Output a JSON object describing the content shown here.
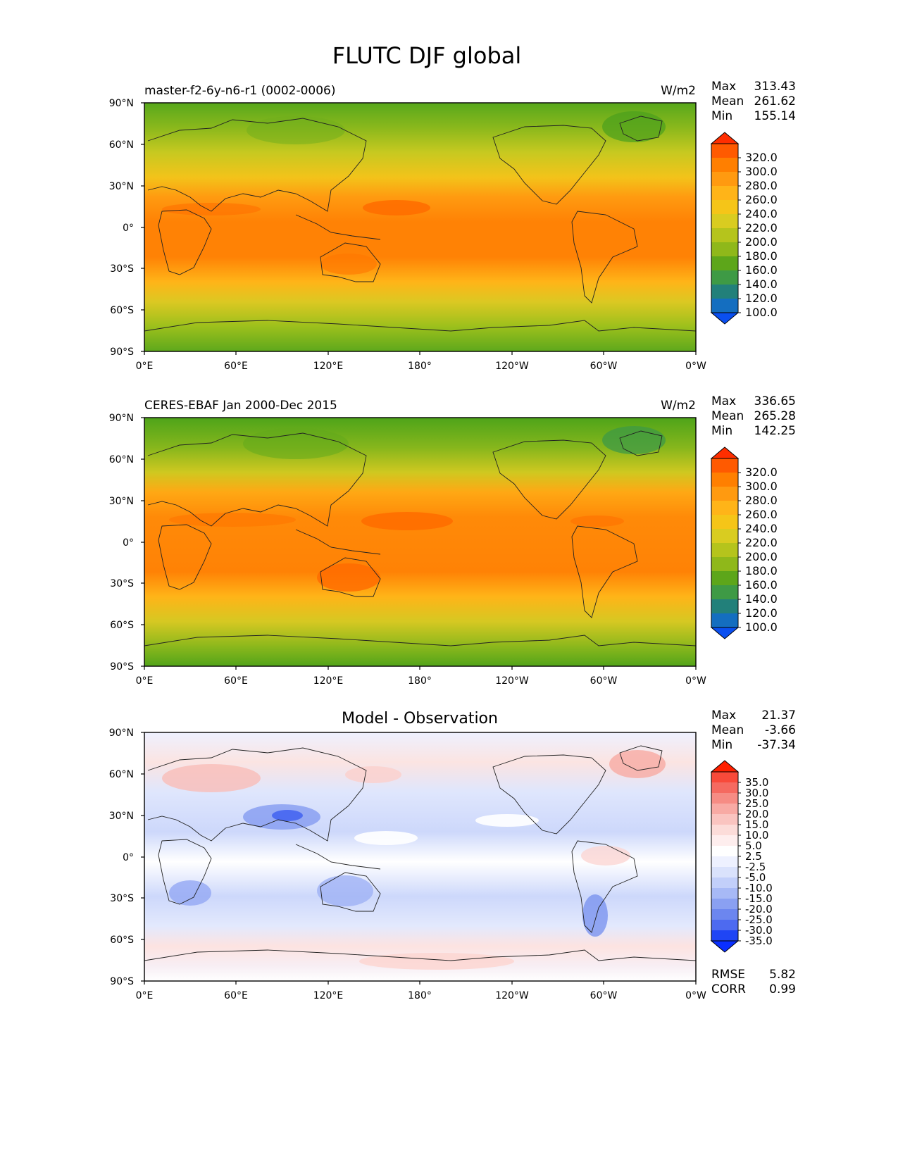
{
  "figure": {
    "title": "FLUTC DJF global"
  },
  "axes": {
    "lat_ticks": [
      "90°N",
      "60°N",
      "30°N",
      "0°",
      "30°S",
      "60°S",
      "90°S"
    ],
    "lon_ticks": [
      "0°E",
      "60°E",
      "120°E",
      "180°",
      "120°W",
      "60°W",
      "0°W"
    ]
  },
  "panels": [
    {
      "left_title": "master-f2-6y-n6-r1 (0002-0006)",
      "center_title": "",
      "units": "W/m2",
      "stats": {
        "max_label": "Max",
        "max": "313.43",
        "mean_label": "Mean",
        "mean": "261.62",
        "min_label": "Min",
        "min": "155.14"
      }
    },
    {
      "left_title": "CERES-EBAF Jan 2000-Dec 2015",
      "center_title": "",
      "units": "W/m2",
      "stats": {
        "max_label": "Max",
        "max": "336.65",
        "mean_label": "Mean",
        "mean": "265.28",
        "min_label": "Min",
        "min": "142.25"
      }
    },
    {
      "left_title": "",
      "center_title": "Model - Observation",
      "units": "",
      "stats": {
        "max_label": "Max",
        "max": "21.37",
        "mean_label": "Mean",
        "mean": "-3.66",
        "min_label": "Min",
        "min": "-37.34"
      },
      "metrics": {
        "rmse_label": "RMSE",
        "rmse": "5.82",
        "corr_label": "CORR",
        "corr": "0.99"
      }
    }
  ],
  "colorbars": {
    "absolute": {
      "labels": [
        "320.0",
        "300.0",
        "280.0",
        "260.0",
        "240.0",
        "220.0",
        "200.0",
        "180.0",
        "160.0",
        "140.0",
        "120.0",
        "100.0"
      ],
      "colors": [
        "#ff2e00",
        "#ff5a00",
        "#ff7f00",
        "#ff9a10",
        "#ffb418",
        "#f5c518",
        "#d9cc20",
        "#b5c41c",
        "#8fb81a",
        "#5da61a",
        "#3e9a45",
        "#22807a",
        "#146ec0",
        "#0a4ff0"
      ]
    },
    "difference": {
      "labels": [
        "35.0",
        "30.0",
        "25.0",
        "20.0",
        "15.0",
        "10.0",
        "5.0",
        "2.5",
        "-2.5",
        "-5.0",
        "-10.0",
        "-15.0",
        "-20.0",
        "-25.0",
        "-30.0",
        "-35.0"
      ],
      "colors": [
        "#ff2000",
        "#f84a3a",
        "#f56a60",
        "#f68c84",
        "#f8aaa4",
        "#fac4c0",
        "#fcdcd9",
        "#feeeee",
        "#ffffff",
        "#eef1ff",
        "#dae2fc",
        "#c2cffa",
        "#a7b9f6",
        "#8aa0f2",
        "#6c86ef",
        "#4d6af0",
        "#1f45f5",
        "#0a2fff"
      ]
    }
  }
}
